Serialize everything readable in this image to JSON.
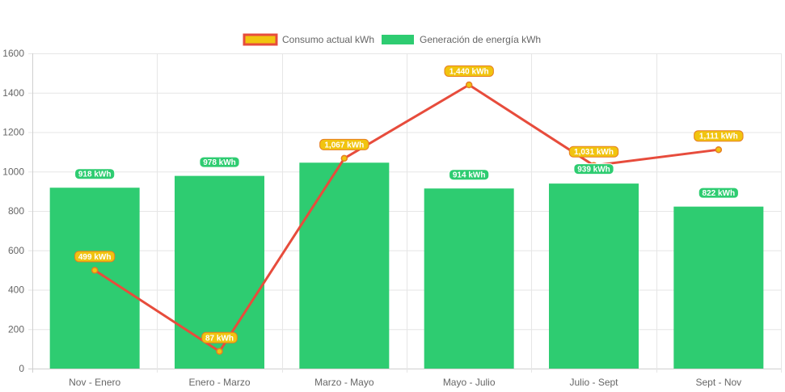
{
  "chart_data": {
    "type": "bar",
    "categories": [
      "Nov - Enero",
      "Enero - Marzo",
      "Marzo - Mayo",
      "Mayo - Julio",
      "Julio - Sept",
      "Sept - Nov"
    ],
    "ylim": [
      0,
      1600
    ],
    "yticks": [
      0,
      200,
      400,
      600,
      800,
      1000,
      1200,
      1400,
      1600
    ],
    "grid": true,
    "legend_position": "top-center",
    "series": [
      {
        "name": "Consumo actual kWh",
        "type": "line",
        "values": [
          499,
          87,
          1067,
          1440,
          1031,
          1111
        ],
        "labels": [
          "499 kWh",
          "87 kWh",
          "1,067 kWh",
          "1,440 kWh",
          "1,031 kWh",
          "1,111 kWh"
        ],
        "color": "#e74c3c",
        "fill": "#f1c40f"
      },
      {
        "name": "Generación de energía kWh",
        "type": "bar",
        "values": [
          918,
          978,
          1045,
          914,
          939,
          822
        ],
        "labels": [
          "918 kWh",
          "978 kWh",
          "",
          "914 kWh",
          "939 kWh",
          "822 kWh"
        ],
        "color": "#2ecc71"
      }
    ]
  }
}
